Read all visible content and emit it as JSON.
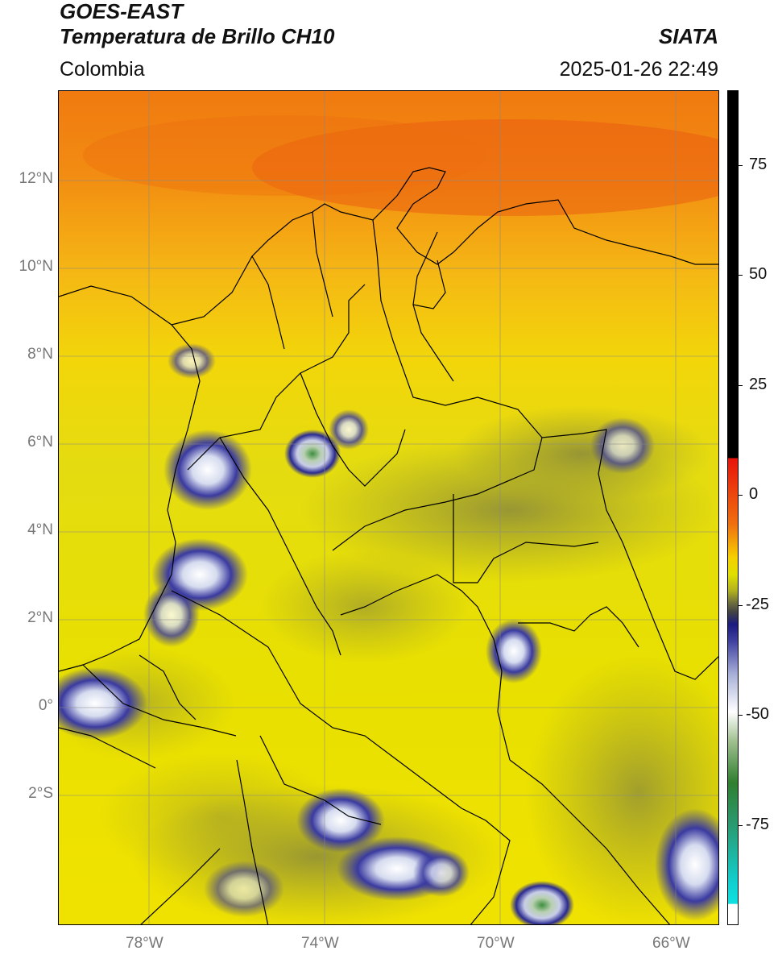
{
  "header": {
    "line1": "GOES-EAST",
    "line2": "Temperatura de Brillo CH10",
    "brand": "SIATA",
    "region": "Colombia",
    "timestamp": "2025-01-26 22:49"
  },
  "axes": {
    "lat_labels": [
      "12°N",
      "10°N",
      "8°N",
      "6°N",
      "4°N",
      "2°N",
      "0°",
      "2°S"
    ],
    "lon_labels": [
      "78°W",
      "74°W",
      "70°W",
      "66°W"
    ]
  },
  "colorbar": {
    "labels": [
      "75",
      "50",
      "25",
      "0",
      "-25",
      "-50",
      "-75"
    ],
    "colors": {
      "saturated": "#000000",
      "warm": "#e8140a",
      "mid": "#f0d800",
      "cool": "#4a4a4a",
      "cold": "#1a1a80",
      "coldest": "#ffffff",
      "green": "#2f7f2f",
      "cyan": "#10d0d0"
    }
  }
}
